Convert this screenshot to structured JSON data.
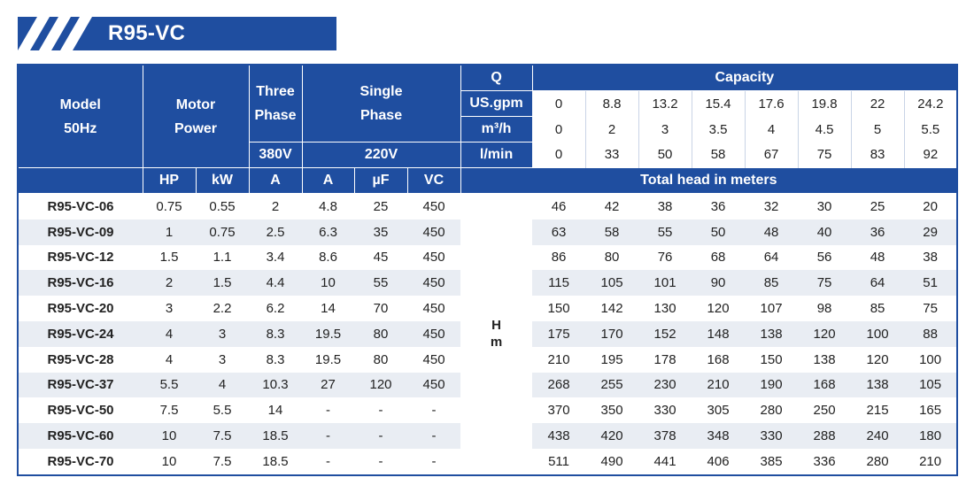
{
  "title": "R95-VC",
  "headers": {
    "model": [
      "Model",
      "50Hz"
    ],
    "motor_power": [
      "Motor",
      "Power"
    ],
    "three_phase": [
      "Three",
      "Phase"
    ],
    "single_phase": [
      "Single",
      "Phase"
    ],
    "voltage_three": "380V",
    "voltage_single": "220V",
    "q": "Q",
    "capacity": "Capacity",
    "units": [
      "US.gpm",
      "m³/h",
      "l/min"
    ],
    "sub": [
      "HP",
      "kW",
      "A",
      "A",
      "µF",
      "VC"
    ],
    "total_head": "Total head in meters",
    "h_unit": [
      "H",
      "m"
    ]
  },
  "capacity": {
    "us_gpm": [
      "0",
      "8.8",
      "13.2",
      "15.4",
      "17.6",
      "19.8",
      "22",
      "24.2"
    ],
    "m3h": [
      "0",
      "2",
      "3",
      "3.5",
      "4",
      "4.5",
      "5",
      "5.5"
    ],
    "lmin": [
      "0",
      "33",
      "50",
      "58",
      "67",
      "75",
      "83",
      "92"
    ]
  },
  "rows": [
    {
      "model": "R95-VC-06",
      "hp": "0.75",
      "kw": "0.55",
      "a3": "2",
      "a1": "4.8",
      "uf": "25",
      "vc": "450",
      "head": [
        "46",
        "42",
        "38",
        "36",
        "32",
        "30",
        "25",
        "20"
      ]
    },
    {
      "model": "R95-VC-09",
      "hp": "1",
      "kw": "0.75",
      "a3": "2.5",
      "a1": "6.3",
      "uf": "35",
      "vc": "450",
      "head": [
        "63",
        "58",
        "55",
        "50",
        "48",
        "40",
        "36",
        "29"
      ]
    },
    {
      "model": "R95-VC-12",
      "hp": "1.5",
      "kw": "1.1",
      "a3": "3.4",
      "a1": "8.6",
      "uf": "45",
      "vc": "450",
      "head": [
        "86",
        "80",
        "76",
        "68",
        "64",
        "56",
        "48",
        "38"
      ]
    },
    {
      "model": "R95-VC-16",
      "hp": "2",
      "kw": "1.5",
      "a3": "4.4",
      "a1": "10",
      "uf": "55",
      "vc": "450",
      "head": [
        "115",
        "105",
        "101",
        "90",
        "85",
        "75",
        "64",
        "51"
      ]
    },
    {
      "model": "R95-VC-20",
      "hp": "3",
      "kw": "2.2",
      "a3": "6.2",
      "a1": "14",
      "uf": "70",
      "vc": "450",
      "head": [
        "150",
        "142",
        "130",
        "120",
        "107",
        "98",
        "85",
        "75"
      ]
    },
    {
      "model": "R95-VC-24",
      "hp": "4",
      "kw": "3",
      "a3": "8.3",
      "a1": "19.5",
      "uf": "80",
      "vc": "450",
      "head": [
        "175",
        "170",
        "152",
        "148",
        "138",
        "120",
        "100",
        "88"
      ]
    },
    {
      "model": "R95-VC-28",
      "hp": "4",
      "kw": "3",
      "a3": "8.3",
      "a1": "19.5",
      "uf": "80",
      "vc": "450",
      "head": [
        "210",
        "195",
        "178",
        "168",
        "150",
        "138",
        "120",
        "100"
      ]
    },
    {
      "model": "R95-VC-37",
      "hp": "5.5",
      "kw": "4",
      "a3": "10.3",
      "a1": "27",
      "uf": "120",
      "vc": "450",
      "head": [
        "268",
        "255",
        "230",
        "210",
        "190",
        "168",
        "138",
        "105"
      ]
    },
    {
      "model": "R95-VC-50",
      "hp": "7.5",
      "kw": "5.5",
      "a3": "14",
      "a1": "-",
      "uf": "-",
      "vc": "-",
      "head": [
        "370",
        "350",
        "330",
        "305",
        "280",
        "250",
        "215",
        "165"
      ]
    },
    {
      "model": "R95-VC-60",
      "hp": "10",
      "kw": "7.5",
      "a3": "18.5",
      "a1": "-",
      "uf": "-",
      "vc": "-",
      "head": [
        "438",
        "420",
        "378",
        "348",
        "330",
        "288",
        "240",
        "180"
      ]
    },
    {
      "model": "R95-VC-70",
      "hp": "10",
      "kw": "7.5",
      "a3": "18.5",
      "a1": "-",
      "uf": "-",
      "vc": "-",
      "head": [
        "511",
        "490",
        "441",
        "406",
        "385",
        "336",
        "280",
        "210"
      ]
    }
  ],
  "colors": {
    "header_blue": "#1f4ea0",
    "row_alt": "#e9edf3"
  }
}
